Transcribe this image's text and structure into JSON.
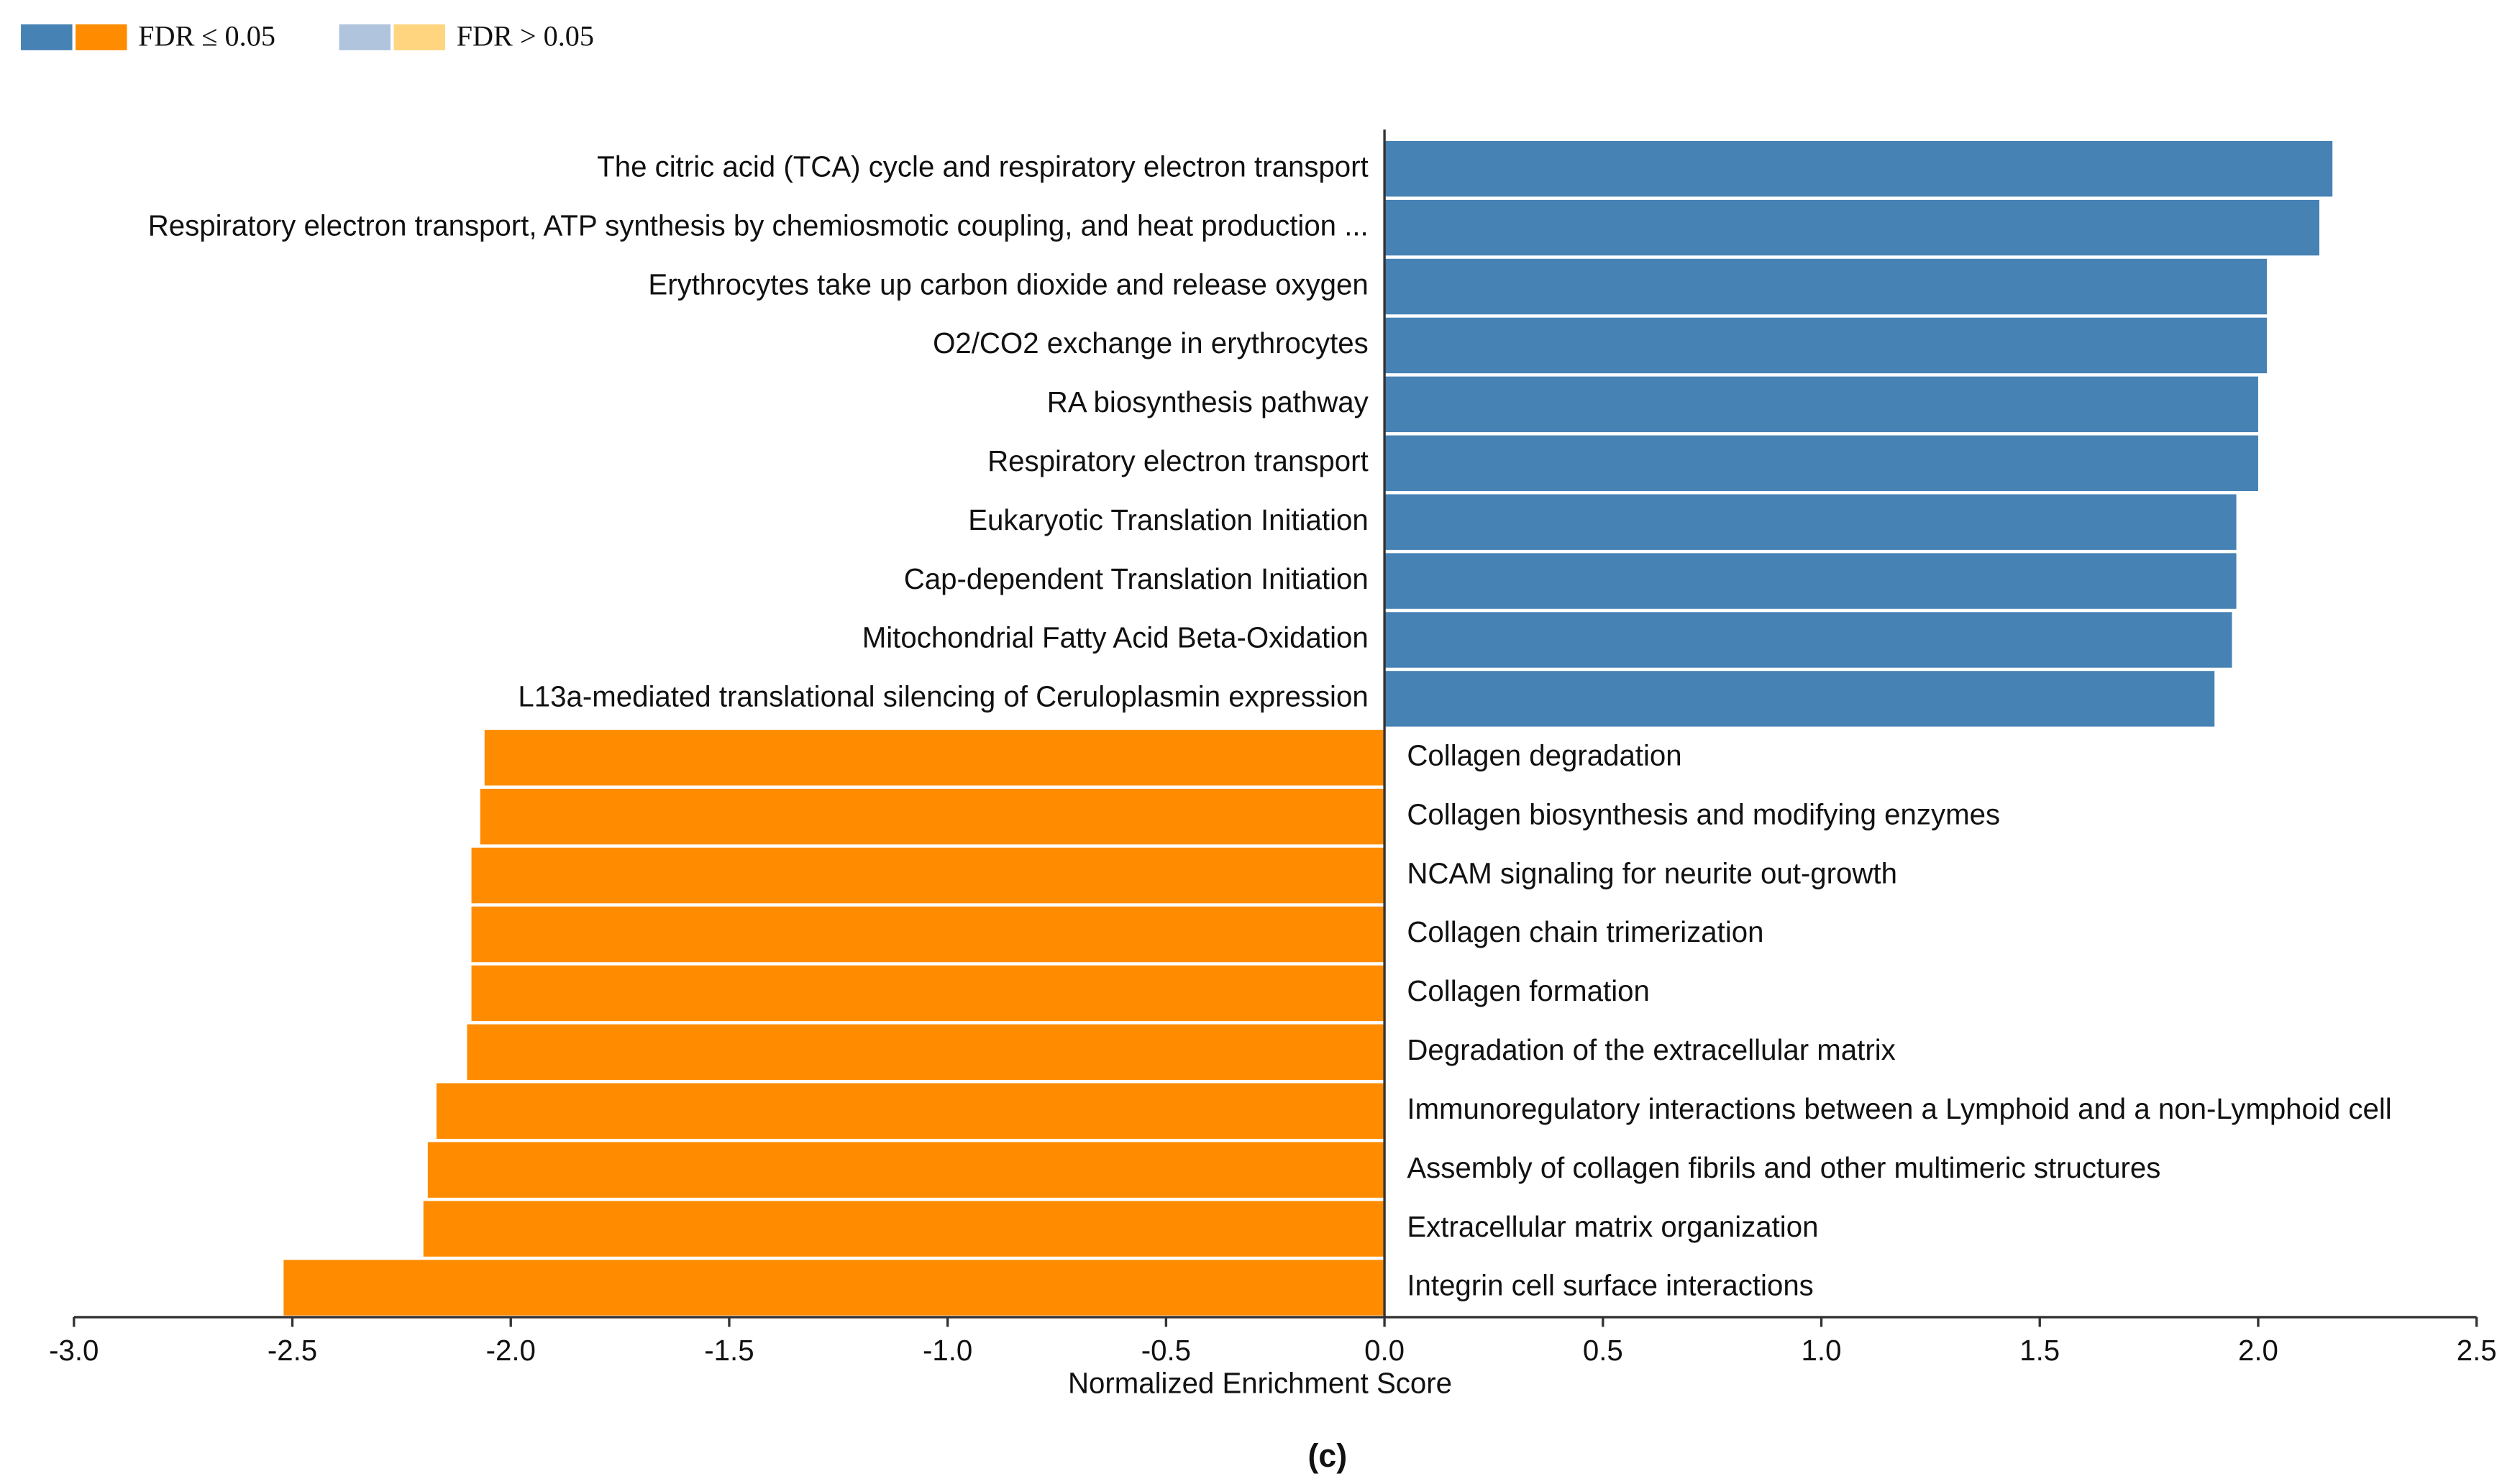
{
  "chart_data": {
    "type": "hbar",
    "legend": [
      {
        "label": "FDR ≤ 0.05",
        "colors": [
          "#4682b4",
          "#ff8c00"
        ]
      },
      {
        "label": "FDR > 0.05",
        "colors": [
          "#b0c4de",
          "#ffd580"
        ]
      }
    ],
    "categories": [
      "The citric acid (TCA) cycle and respiratory electron transport",
      "Respiratory electron transport, ATP synthesis by chemiosmotic coupling, and heat production ...",
      "Erythrocytes take up carbon dioxide and release oxygen",
      "O2/CO2 exchange in erythrocytes",
      "RA biosynthesis pathway",
      "Respiratory electron transport",
      "Eukaryotic Translation Initiation",
      "Cap-dependent Translation Initiation",
      "Mitochondrial Fatty Acid Beta-Oxidation",
      "L13a-mediated translational silencing of Ceruloplasmin expression",
      "Collagen degradation",
      "Collagen biosynthesis and modifying enzymes",
      "NCAM signaling for neurite out-growth",
      "Collagen chain trimerization",
      "Collagen formation",
      "Degradation of the extracellular matrix",
      "Immunoregulatory interactions between a Lymphoid and a non-Lymphoid cell",
      "Assembly of collagen fibrils and other multimeric structures",
      "Extracellular matrix organization",
      "Integrin cell surface interactions"
    ],
    "values": [
      2.17,
      2.14,
      2.02,
      2.02,
      2.0,
      2.0,
      1.95,
      1.95,
      1.94,
      1.9,
      -2.06,
      -2.07,
      -2.09,
      -2.09,
      -2.09,
      -2.1,
      -2.17,
      -2.19,
      -2.2,
      -2.52
    ],
    "xlabel": "Normalized Enrichment Score",
    "xlim": [
      -3.0,
      2.5
    ],
    "xticks": [
      {
        "value": -3.0,
        "label": "-3.0"
      },
      -2.5,
      {
        "value": -2.0,
        "label": "-2.0"
      },
      -1.5,
      {
        "value": -1.0,
        "label": "-1.0"
      },
      -0.5,
      {
        "value": 0.0,
        "label": "0.0"
      },
      0.5,
      {
        "value": 1.0,
        "label": "1.0"
      },
      1.5,
      {
        "value": 2.0,
        "label": "2.0"
      },
      2.5
    ],
    "caption": "(c)"
  }
}
